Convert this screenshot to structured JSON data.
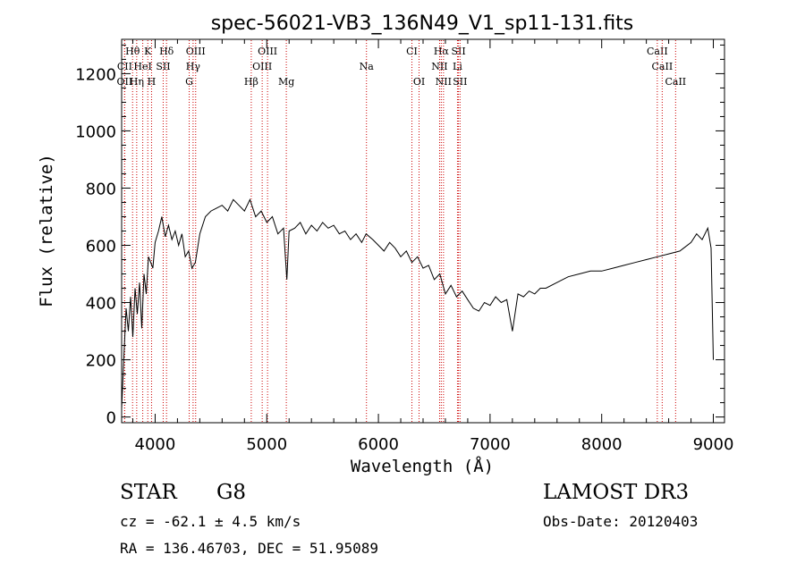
{
  "chart_data": {
    "type": "line",
    "title": "spec-56021-VB3_136N49_V1_sp11-131.fits",
    "xlabel": "Wavelength (Å)",
    "ylabel": "Flux (relative)",
    "xlim": [
      3700,
      9100
    ],
    "ylim": [
      -20,
      1320
    ],
    "x_ticks": [
      4000,
      5000,
      6000,
      7000,
      8000,
      9000
    ],
    "y_ticks": [
      0,
      200,
      400,
      600,
      800,
      1000,
      1200
    ],
    "series": [
      {
        "name": "flux",
        "x": [
          3700,
          3720,
          3740,
          3760,
          3780,
          3800,
          3820,
          3840,
          3860,
          3880,
          3900,
          3920,
          3940,
          3960,
          3980,
          4000,
          4030,
          4060,
          4090,
          4120,
          4150,
          4180,
          4210,
          4240,
          4270,
          4300,
          4330,
          4360,
          4400,
          4450,
          4500,
          4550,
          4600,
          4650,
          4700,
          4750,
          4800,
          4850,
          4900,
          4950,
          5000,
          5050,
          5100,
          5150,
          5180,
          5200,
          5250,
          5300,
          5350,
          5400,
          5450,
          5500,
          5550,
          5600,
          5650,
          5700,
          5750,
          5800,
          5850,
          5890,
          5950,
          6000,
          6050,
          6100,
          6150,
          6200,
          6250,
          6300,
          6350,
          6400,
          6450,
          6500,
          6550,
          6600,
          6650,
          6700,
          6750,
          6800,
          6850,
          6900,
          6950,
          7000,
          7050,
          7100,
          7150,
          7200,
          7250,
          7300,
          7350,
          7400,
          7450,
          7500,
          7600,
          7700,
          7800,
          7900,
          8000,
          8100,
          8200,
          8300,
          8400,
          8500,
          8600,
          8700,
          8800,
          8850,
          8900,
          8950,
          8980,
          9000
        ],
        "y": [
          30,
          210,
          380,
          300,
          420,
          280,
          450,
          360,
          470,
          310,
          500,
          430,
          560,
          540,
          520,
          610,
          650,
          700,
          630,
          670,
          620,
          650,
          600,
          640,
          560,
          580,
          520,
          540,
          640,
          700,
          720,
          730,
          740,
          720,
          760,
          740,
          720,
          760,
          700,
          720,
          680,
          700,
          640,
          660,
          480,
          650,
          660,
          680,
          640,
          670,
          650,
          680,
          660,
          670,
          640,
          650,
          620,
          640,
          610,
          640,
          620,
          600,
          580,
          610,
          590,
          560,
          580,
          540,
          560,
          520,
          530,
          480,
          500,
          430,
          460,
          420,
          440,
          410,
          380,
          370,
          400,
          390,
          420,
          400,
          410,
          300,
          430,
          420,
          440,
          430,
          450,
          450,
          470,
          490,
          500,
          510,
          510,
          520,
          530,
          540,
          550,
          560,
          570,
          580,
          610,
          640,
          620,
          660,
          590,
          200
        ]
      }
    ],
    "line_markers": [
      {
        "label": "Hθ",
        "x": 3798,
        "row": 1
      },
      {
        "label": "K",
        "x": 3934,
        "row": 1
      },
      {
        "label": "Hδ",
        "x": 4102,
        "row": 1
      },
      {
        "label": "OIII",
        "x": 4363,
        "row": 1
      },
      {
        "label": "OIII",
        "x": 5007,
        "row": 1
      },
      {
        "label": "CI",
        "x": 6300,
        "row": 1
      },
      {
        "label": "Hα",
        "x": 6563,
        "row": 1
      },
      {
        "label": "SII",
        "x": 6717,
        "row": 1
      },
      {
        "label": "CaII",
        "x": 8498,
        "row": 1
      },
      {
        "label": "CII",
        "x": 3727,
        "row": 2
      },
      {
        "label": "HeI",
        "x": 3889,
        "row": 2
      },
      {
        "label": "SII",
        "x": 4072,
        "row": 2
      },
      {
        "label": "Hγ",
        "x": 4340,
        "row": 2
      },
      {
        "label": "OIII",
        "x": 4959,
        "row": 2
      },
      {
        "label": "NII",
        "x": 6548,
        "row": 2
      },
      {
        "label": "Li",
        "x": 6708,
        "row": 2
      },
      {
        "label": "CaII",
        "x": 8542,
        "row": 2
      },
      {
        "label": "OII",
        "x": 3727,
        "row": 3
      },
      {
        "label": "Hη",
        "x": 3835,
        "row": 3
      },
      {
        "label": "H",
        "x": 3968,
        "row": 3
      },
      {
        "label": "G",
        "x": 4305,
        "row": 3
      },
      {
        "label": "Hβ",
        "x": 4861,
        "row": 3
      },
      {
        "label": "Mg",
        "x": 5175,
        "row": 3
      },
      {
        "label": "Na",
        "x": 5893,
        "row": 2
      },
      {
        "label": "OI",
        "x": 6364,
        "row": 3
      },
      {
        "label": "NII",
        "x": 6583,
        "row": 3
      },
      {
        "label": "SII",
        "x": 6731,
        "row": 3
      },
      {
        "label": "CaII",
        "x": 8662,
        "row": 3
      }
    ],
    "colors": {
      "spectrum": "#000000",
      "marker_line": "#cc0000",
      "axis": "#000000"
    }
  },
  "info": {
    "object_type": "STAR",
    "subclass": "G8",
    "survey": "LAMOST DR3",
    "velocity": "cz = -62.1 ± 4.5 km/s",
    "obs_date": "Obs-Date: 20120403",
    "coords": "RA = 136.46703, DEC =  51.95089"
  }
}
